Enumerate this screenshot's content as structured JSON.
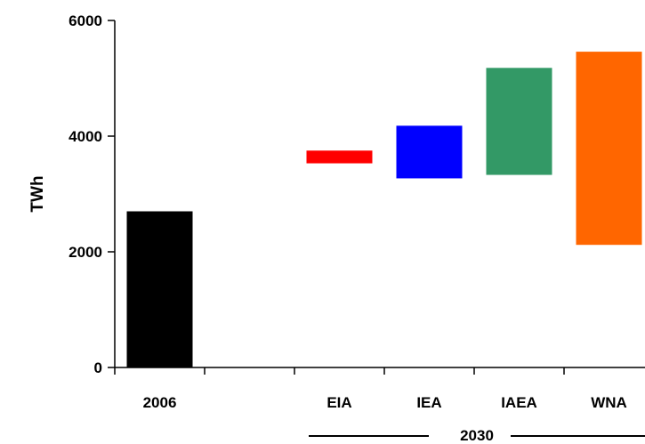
{
  "chart_data": {
    "type": "bar",
    "subtype": "floating-range",
    "ylabel": "TWh",
    "xlabel": "",
    "ylim": [
      0,
      6000
    ],
    "yticks": [
      0,
      2000,
      4000,
      6000
    ],
    "grid": false,
    "legend": "none",
    "group_label": "2030",
    "bars": [
      {
        "category": "2006",
        "low": 0,
        "high": 2700,
        "color": "#000000"
      },
      {
        "category": "EIA",
        "low": 3530,
        "high": 3750,
        "color": "#ff0000"
      },
      {
        "category": "IEA",
        "low": 3270,
        "high": 4180,
        "color": "#0000ff"
      },
      {
        "category": "IAEA",
        "low": 3330,
        "high": 5180,
        "color": "#339966"
      },
      {
        "category": "WNA",
        "low": 2120,
        "high": 5460,
        "color": "#ff6600"
      }
    ]
  }
}
